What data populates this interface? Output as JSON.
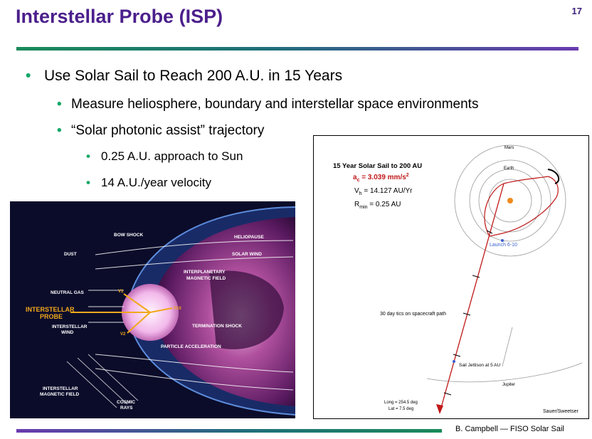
{
  "slide": {
    "title": "Interstellar Probe (ISP)",
    "page_number": "17",
    "bullets": {
      "l1": "Use Solar Sail to Reach 200 A.U. in 15 Years",
      "l2a": "Measure heliosphere, boundary and interstellar space environments",
      "l2b": "“Solar photonic assist” trajectory",
      "l3a": "0.25 A.U. approach to Sun",
      "l3b": "14 A.U./year velocity"
    },
    "footer": "B. Campbell — FISO Solar Sail",
    "colors": {
      "title": "#4b1f8c",
      "bullet": "#17a86a",
      "rule_green": "#1a8a5a",
      "rule_purple": "#6a3bb0"
    }
  },
  "heliosphere": {
    "labels": {
      "bow_shock": "BOW SHOCK",
      "heliopause": "HELIOPAUSE",
      "dust": "DUST",
      "solar_wind": "SOLAR WIND",
      "interplanetary_1": "INTERPLANETARY",
      "interplanetary_2": "MAGNETIC FIELD",
      "neutral_gas": "NEUTRAL GAS",
      "probe_1": "INTERSTELLAR",
      "probe_2": "PROBE",
      "is_wind_1": "INTERSTELLAR",
      "is_wind_2": "WIND",
      "termination_shock": "TERMINATION SHOCK",
      "particle_accel": "PARTICLE ACCELERATION",
      "is_mag_1": "INTERSTELLAR",
      "is_mag_2": "MAGNETIC FIELD",
      "cosmic_1": "COSMIC",
      "cosmic_2": "RAYS",
      "p10": "P10",
      "v1": "V1",
      "v2": "V2"
    }
  },
  "trajectory": {
    "title": "15 Year Solar Sail to 200 AU",
    "ac_label": "a",
    "ac_sub": "c",
    "ac_value": " = 3.039 mm/s",
    "ac_sup": "2",
    "vh_label": "V",
    "vh_sub": "h",
    "vh_value": " = 14.127 AU/Yr",
    "rmin_label": "R",
    "rmin_sub": "min",
    "rmin_value": " = 0.25 AU",
    "mars": "Mars",
    "earth": "Earth",
    "launch": "Launch  6-10",
    "tics": "30 day tics on spacecraft path",
    "jettison": "Sail Jettison at 5 AU",
    "jupiter": "Jupiter",
    "long": "Long = 254.5 deg",
    "lat": "Lat = 7.5 deg",
    "credit": "Sauer/Sweetser"
  }
}
